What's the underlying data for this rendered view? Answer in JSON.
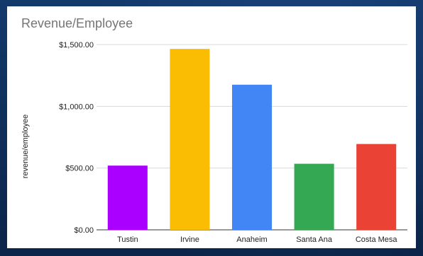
{
  "chart_data": {
    "type": "bar",
    "title": "Revenue/Employee",
    "xlabel": "",
    "ylabel": "revenue/employee",
    "categories": [
      "Tustin",
      "Irvine",
      "Anaheim",
      "Santa Ana",
      "Costa Mesa"
    ],
    "values": [
      520,
      1465,
      1175,
      535,
      695
    ],
    "colors": [
      "#aa00ff",
      "#fbbc04",
      "#4285f4",
      "#34a853",
      "#ea4335"
    ],
    "ylim": [
      0,
      1500
    ],
    "yticks": [
      0,
      500,
      1000,
      1500
    ],
    "ytick_labels": [
      "$0.00",
      "$500.00",
      "$1,000.00",
      "$1,500.00"
    ],
    "grid": true,
    "legend": "none"
  }
}
